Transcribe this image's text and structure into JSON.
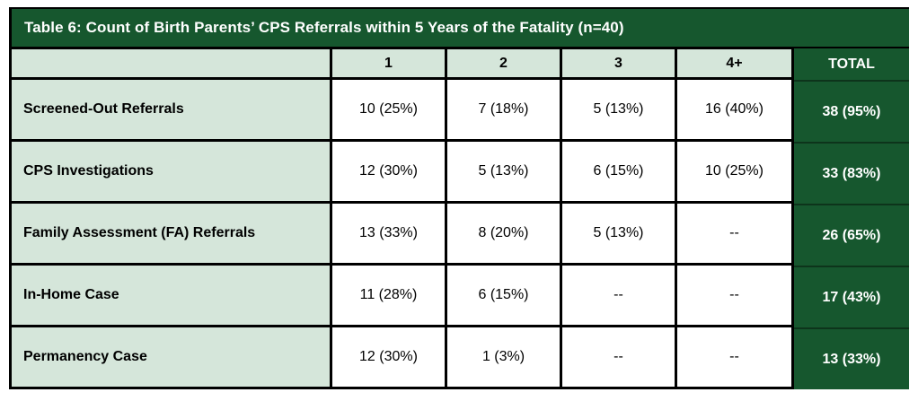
{
  "table": {
    "title": "Table 6: Count of Birth Parents’ CPS Referrals within 5 Years of the Fatality (n=40)",
    "columns": [
      "1",
      "2",
      "3",
      "4+"
    ],
    "total_label": "TOTAL",
    "rows": [
      {
        "label": "Screened-Out Referrals",
        "values": [
          "10 (25%)",
          "7 (18%)",
          "5 (13%)",
          "16 (40%)"
        ],
        "total": "38 (95%)"
      },
      {
        "label": "CPS Investigations",
        "values": [
          "12 (30%)",
          "5 (13%)",
          "6 (15%)",
          "10 (25%)"
        ],
        "total": "33 (83%)"
      },
      {
        "label": "Family Assessment (FA) Referrals",
        "values": [
          "13 (33%)",
          "8 (20%)",
          "5 (13%)",
          "--"
        ],
        "total": "26 (65%)"
      },
      {
        "label": "In-Home Case",
        "values": [
          "11 (28%)",
          "6 (15%)",
          "--",
          "--"
        ],
        "total": "17 (43%)"
      },
      {
        "label": "Permanency Case",
        "values": [
          "12 (30%)",
          "1 (3%)",
          "--",
          "--"
        ],
        "total": "13 (33%)"
      }
    ]
  },
  "colors": {
    "dark_green": "#16572E",
    "light_green": "#D5E6DA",
    "border_black": "#000000",
    "white_text": "#FFFFFF",
    "data_text": "#000000"
  }
}
